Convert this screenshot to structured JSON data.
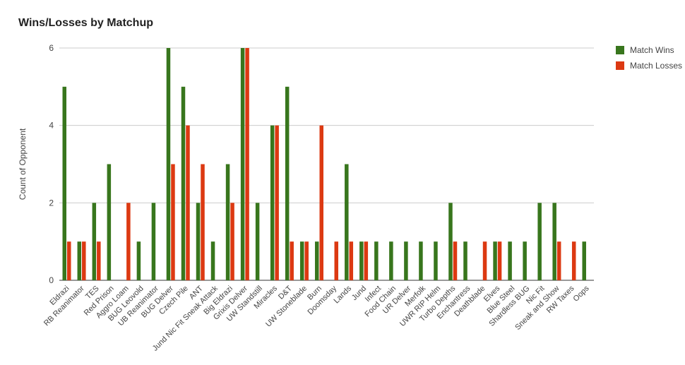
{
  "chart_data": {
    "type": "bar",
    "title": "Wins/Losses by Matchup",
    "xlabel": "",
    "ylabel": "Count of Opponent",
    "ylim": [
      0,
      6
    ],
    "yticks": [
      0,
      2,
      4,
      6
    ],
    "grid": true,
    "legend_position": "right",
    "categories": [
      "Eldrazi",
      "RB Reanimator",
      "TES",
      "Red Prison",
      "Aggro Loam",
      "BUG Leovold",
      "UB Reanimator",
      "BUG Delver",
      "Czech Pile",
      "ANT",
      "Jund Nic Fit Sneak Attack",
      "Big Eldrazi",
      "Grixis Delver",
      "UW Standstill",
      "Miracles",
      "D&T",
      "UW Stoneblade",
      "Burn",
      "Doomsday",
      "Lands",
      "Jund",
      "Infect",
      "Food Chain",
      "UR Delver",
      "Merfolk",
      "UWR RIP Helm",
      "Turbo Depths",
      "Enchantress",
      "Deathblade",
      "Elves",
      "Blue Steel",
      "Shardless BUG",
      "Nic Fit",
      "Sneak and Show",
      "RW Taxes",
      "Oops"
    ],
    "series": [
      {
        "name": "Match Wins",
        "color": "#38761d",
        "values": [
          5,
          1,
          2,
          3,
          0,
          1,
          2,
          6,
          5,
          2,
          1,
          3,
          6,
          2,
          4,
          5,
          1,
          1,
          0,
          3,
          1,
          1,
          1,
          1,
          1,
          1,
          2,
          1,
          0,
          1,
          1,
          1,
          2,
          2,
          0,
          1
        ]
      },
      {
        "name": "Match Losses",
        "color": "#dc3912",
        "values": [
          1,
          1,
          1,
          0,
          2,
          0,
          0,
          3,
          4,
          3,
          0,
          2,
          6,
          0,
          4,
          1,
          1,
          4,
          1,
          1,
          1,
          0,
          0,
          0,
          0,
          0,
          1,
          0,
          1,
          1,
          0,
          0,
          0,
          1,
          1,
          0
        ]
      }
    ]
  }
}
